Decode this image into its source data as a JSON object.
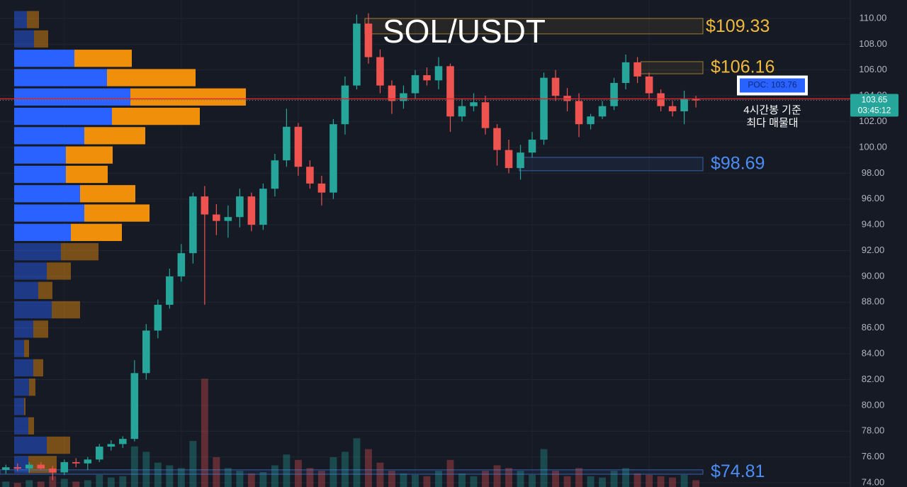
{
  "chart_data": {
    "type": "candlestick",
    "title": "SOL/USDT",
    "grid": true,
    "up_color": "#26a69a",
    "down_color": "#ef5350",
    "xlim": [
      -0.5,
      72.2
    ],
    "ylim": [
      73.67,
      111.43
    ],
    "yticks": [
      {
        "value": 74,
        "label": "74.00"
      },
      {
        "value": 76,
        "label": "76.00"
      },
      {
        "value": 78,
        "label": "78.00"
      },
      {
        "value": 80,
        "label": "80.00"
      },
      {
        "value": 82,
        "label": "82.00"
      },
      {
        "value": 84,
        "label": "84.00"
      },
      {
        "value": 86,
        "label": "86.00"
      },
      {
        "value": 88,
        "label": "88.00"
      },
      {
        "value": 90,
        "label": "90.00"
      },
      {
        "value": 92,
        "label": "92.00"
      },
      {
        "value": 94,
        "label": "94.00"
      },
      {
        "value": 96,
        "label": "96.00"
      },
      {
        "value": 98,
        "label": "98.00"
      },
      {
        "value": 100,
        "label": "100.00"
      },
      {
        "value": 102,
        "label": "102.00"
      },
      {
        "value": 104,
        "label": "104.00"
      },
      {
        "value": 106,
        "label": "106.00"
      },
      {
        "value": 108,
        "label": "108.00"
      },
      {
        "value": 110,
        "label": "110.00"
      }
    ],
    "x": [
      0,
      1,
      2,
      3,
      4,
      5,
      6,
      7,
      8,
      9,
      10,
      11,
      12,
      13,
      14,
      15,
      16,
      17,
      18,
      19,
      20,
      21,
      22,
      23,
      24,
      25,
      26,
      27,
      28,
      29,
      30,
      31,
      32,
      33,
      34,
      35,
      36,
      37,
      38,
      39,
      40,
      41,
      42,
      43,
      44,
      45,
      46,
      47,
      48,
      49,
      50,
      51,
      52,
      53,
      54,
      55,
      56,
      57,
      58,
      59
    ],
    "open": [
      75.0,
      75.2,
      75.1,
      75.4,
      75.1,
      74.8,
      75.6,
      75.5,
      75.8,
      76.8,
      77.0,
      77.4,
      82.5,
      85.8,
      87.8,
      90.0,
      91.8,
      96.2,
      94.8,
      94.3,
      94.6,
      96.2,
      94.0,
      96.8,
      99.0,
      101.6,
      98.5,
      97.2,
      96.5,
      101.8,
      104.8,
      109.6,
      107.0,
      104.8,
      103.6,
      104.2,
      105.6,
      105.2,
      106.3,
      102.4,
      103.2,
      103.5,
      101.5,
      99.8,
      98.4,
      99.6,
      100.6,
      105.4,
      104.0,
      103.6,
      101.8,
      102.4,
      103.2,
      105.0,
      106.6,
      105.5,
      104.2,
      103.2,
      102.8,
      103.8
    ],
    "high": [
      75.4,
      75.5,
      75.6,
      75.6,
      75.3,
      75.8,
      75.9,
      76.0,
      77.0,
      77.3,
      77.6,
      83.5,
      86.3,
      88.2,
      90.6,
      92.5,
      96.5,
      97.0,
      95.6,
      95.5,
      96.8,
      96.5,
      97.2,
      99.5,
      103.0,
      101.9,
      99.0,
      97.8,
      102.2,
      105.5,
      110.3,
      110.4,
      107.6,
      105.2,
      104.8,
      106.0,
      106.2,
      107.0,
      106.5,
      103.8,
      104.2,
      104.0,
      101.8,
      100.6,
      100.2,
      101.2,
      105.8,
      106.0,
      104.6,
      104.2,
      102.6,
      103.6,
      105.4,
      107.2,
      107.0,
      105.8,
      104.5,
      103.6,
      104.4,
      104.0
    ],
    "low": [
      74.7,
      74.9,
      74.8,
      75.0,
      74.2,
      74.6,
      75.2,
      75.0,
      75.6,
      76.5,
      76.7,
      77.2,
      82.0,
      85.2,
      87.5,
      89.6,
      91.0,
      87.8,
      93.2,
      93.0,
      93.8,
      93.5,
      93.6,
      96.2,
      98.5,
      97.8,
      96.8,
      95.5,
      96.0,
      101.0,
      104.5,
      106.5,
      104.2,
      102.6,
      103.0,
      103.8,
      104.8,
      104.5,
      101.2,
      102.0,
      102.8,
      101.0,
      98.6,
      98.0,
      97.5,
      99.2,
      100.2,
      103.6,
      102.8,
      100.8,
      101.4,
      102.2,
      102.9,
      104.5,
      105.0,
      103.8,
      102.8,
      102.4,
      101.8,
      103.1
    ],
    "close": [
      75.2,
      75.1,
      75.4,
      75.1,
      74.8,
      75.6,
      75.5,
      75.8,
      76.8,
      77.0,
      77.4,
      82.5,
      85.8,
      87.8,
      90.0,
      91.8,
      96.2,
      94.8,
      94.3,
      94.6,
      96.2,
      94.0,
      96.8,
      99.0,
      101.6,
      98.5,
      97.2,
      96.5,
      101.8,
      104.8,
      109.6,
      107.0,
      104.8,
      103.6,
      104.2,
      105.6,
      105.2,
      106.3,
      102.4,
      103.2,
      103.5,
      101.5,
      99.8,
      98.4,
      99.6,
      100.6,
      105.4,
      104.0,
      103.6,
      101.8,
      102.4,
      103.2,
      105.0,
      106.6,
      105.5,
      104.2,
      103.2,
      102.8,
      103.8,
      103.65
    ],
    "volume": [
      4,
      3,
      5,
      4,
      8,
      6,
      4,
      5,
      9,
      7,
      8,
      30,
      26,
      18,
      16,
      14,
      34,
      80,
      22,
      14,
      12,
      10,
      11,
      16,
      24,
      20,
      14,
      12,
      22,
      26,
      36,
      28,
      18,
      12,
      10,
      9,
      8,
      12,
      20,
      10,
      8,
      12,
      16,
      14,
      12,
      9,
      28,
      12,
      8,
      14,
      8,
      7,
      12,
      14,
      10,
      9,
      8,
      7,
      9,
      5
    ],
    "volume_ylim": [
      0,
      110
    ],
    "volume_profile": {
      "bins": [
        110.66,
        109.16,
        107.66,
        106.16,
        104.66,
        103.16,
        101.66,
        100.16,
        98.66,
        97.16,
        95.66,
        94.16,
        92.66,
        91.16,
        89.66,
        88.16,
        86.66,
        85.16,
        83.66,
        82.16,
        80.66,
        79.16,
        77.66,
        76.16,
        74.66
      ],
      "buy": [
        18,
        28,
        85,
        131,
        164,
        138,
        99,
        73,
        73,
        93,
        99,
        80,
        66,
        46,
        34,
        53,
        27,
        14,
        27,
        21,
        14,
        20,
        46,
        20
      ],
      "sell": [
        17,
        20,
        81,
        125,
        163,
        124,
        86,
        66,
        59,
        78,
        92,
        72,
        53,
        34,
        20,
        40,
        21,
        7,
        14,
        9,
        2,
        8,
        33,
        40
      ],
      "xlim": [
        0,
        1280
      ],
      "value_area_bins": [
        2,
        11
      ],
      "buy_color": "#2962ff",
      "sell_color": "#f0900a"
    },
    "zones": [
      {
        "label": "$109.33",
        "value": 109.33,
        "low": 108.8,
        "high": 110.0,
        "start": 30.7,
        "color": "#f0b93a"
      },
      {
        "label": "$106.16",
        "value": 106.16,
        "low": 105.71,
        "high": 106.65,
        "start": 54.3,
        "color": "#f0b93a"
      },
      {
        "label": "$98.69",
        "value": 98.69,
        "low": 98.19,
        "high": 99.23,
        "start": 43.9,
        "color": "#4c8df6"
      },
      {
        "label": "$74.81",
        "value": 74.81,
        "low": 74.66,
        "high": 75.0,
        "start": -0.5,
        "color": "#4c8df6"
      }
    ],
    "poc": {
      "label": "POC: 103.76",
      "value": 103.76
    },
    "last_price": {
      "label": "103.65",
      "value": 103.65,
      "countdown": "03:45:12"
    },
    "note": [
      "4시간봉 기준",
      "최다 매물대"
    ]
  }
}
